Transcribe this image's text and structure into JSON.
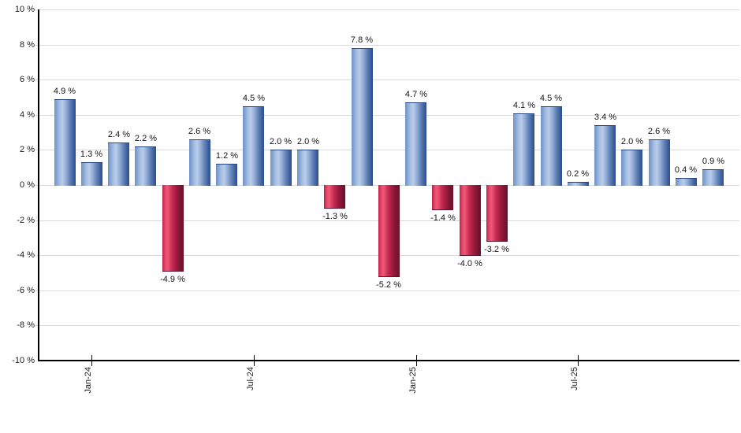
{
  "chart_data": {
    "type": "bar",
    "title": "",
    "x": [
      "Dec-23",
      "Jan-24",
      "Feb-24",
      "Mar-24",
      "Apr-24",
      "May-24",
      "Jun-24",
      "Jul-24",
      "Aug-24",
      "Sep-24",
      "Oct-24",
      "Nov-24",
      "Dec-24",
      "Jan-25",
      "Feb-25",
      "Mar-25",
      "Apr-25",
      "May-25",
      "Jun-25",
      "Jul-25",
      "Aug-25",
      "Sep-25",
      "Oct-25",
      "Nov-25",
      "Dec-25"
    ],
    "values": [
      4.9,
      1.3,
      2.4,
      2.2,
      -4.9,
      2.6,
      1.2,
      4.5,
      2.0,
      2.0,
      -1.3,
      7.8,
      -5.2,
      4.7,
      -1.4,
      -4.0,
      -3.2,
      4.1,
      4.5,
      0.2,
      3.4,
      2.0,
      2.6,
      0.4,
      0.9
    ],
    "bar_labels": [
      "4.9 %",
      "1.3 %",
      "2.4 %",
      "2.2 %",
      "-4.9 %",
      "2.6 %",
      "1.2 %",
      "4.5 %",
      "2.0 %",
      "2.0 %",
      "-1.3 %",
      "7.8 %",
      "-5.2 %",
      "4.7 %",
      "-1.4 %",
      "-4.0 %",
      "-3.2 %",
      "4.1 %",
      "4.5 %",
      "0.2 %",
      "3.4 %",
      "2.0 %",
      "2.6 %",
      "0.4 %",
      "0.9 %"
    ],
    "x_axis": {
      "tick_labels": [
        "Jan-24",
        "Jul-24",
        "Jan-25",
        "Jul-25"
      ],
      "tick_month_indices": [
        1,
        7,
        13,
        19
      ],
      "label_rotation_deg": -90
    },
    "y_axis": {
      "tick_labels": [
        "10 %",
        "8 %",
        "6 %",
        "4 %",
        "2 %",
        "0 %",
        "-2 %",
        "-4 %",
        "-6 %",
        "-8 %",
        "-10 %"
      ],
      "tick_values": [
        10,
        8,
        6,
        4,
        2,
        0,
        -2,
        -4,
        -6,
        -8,
        -10
      ],
      "min": -10,
      "max": 10,
      "step": 2
    },
    "grid": true,
    "legend": null,
    "colors": {
      "positive_bar_edge": "#6d92c6",
      "positive_bar_highlight": "#b9cce9",
      "positive_bar_dark": "#2e4f8e",
      "negative_bar_edge": "#c02148",
      "negative_bar_highlight": "#ee5876",
      "negative_bar_dark": "#69122b",
      "gridline": "#d9d9d9",
      "axis": "#000000",
      "label_text": "#14141c",
      "background": "#ffffff"
    }
  }
}
